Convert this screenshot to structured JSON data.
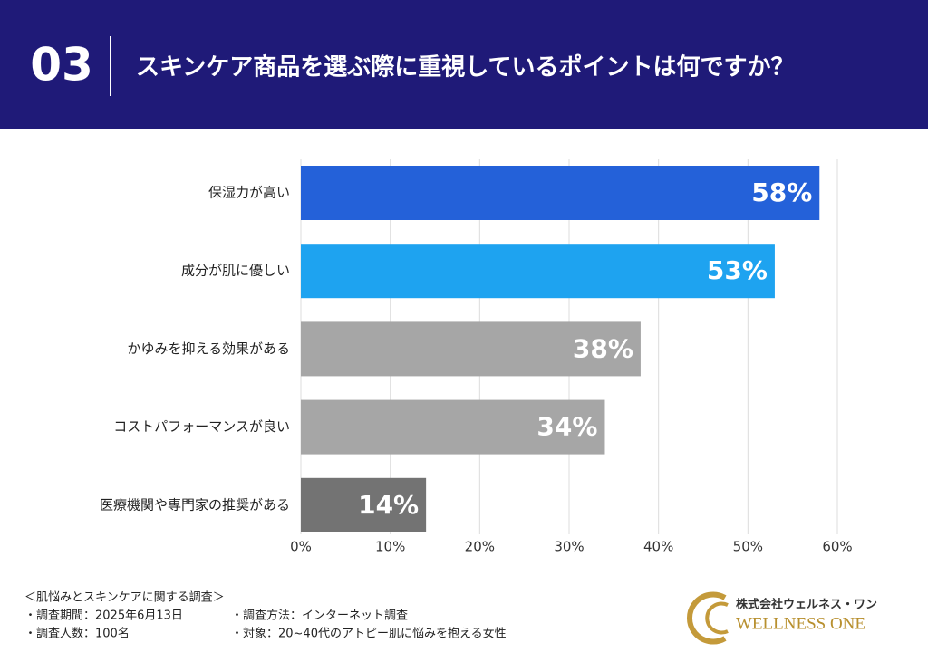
{
  "header": {
    "number": "03"
  },
  "chart_data": {
    "type": "barh",
    "title": "スキンケア商品を選ぶ際に重視しているポイントは何ですか？",
    "categories": [
      "保湿力が高い",
      "成分が肌に優しい",
      "かゆみを抑える効果がある",
      "コストパフォーマンスが良い",
      "医療機関や専門家の推奨がある"
    ],
    "values": [
      58,
      53,
      38,
      34,
      14
    ],
    "value_labels": [
      "58%",
      "53%",
      "38%",
      "34%",
      "14%"
    ],
    "colors": [
      "#2461d9",
      "#1ea3f0",
      "#a6a6a6",
      "#a6a6a6",
      "#737373"
    ],
    "xlim": [
      0,
      60
    ],
    "xticks": [
      {
        "value": 0,
        "label": "0%"
      },
      {
        "value": 10,
        "label": "10%"
      },
      {
        "value": 20,
        "label": "20%"
      },
      {
        "value": 30,
        "label": "30%"
      },
      {
        "value": 40,
        "label": "40%"
      },
      {
        "value": 50,
        "label": "50%"
      },
      {
        "value": 60,
        "label": "60%"
      }
    ],
    "grid": true
  },
  "footer": {
    "lines": [
      "＜肌悩みとスキンケアに関する調査＞",
      "・調査期間：2025年6月13日",
      "・調査人数：100名",
      "・調査方法：インターネット調査",
      "・対象：20~40代のアトピー肌に悩みを抱える女性"
    ],
    "company": "株式会社ウェルネス・ワン",
    "brand": "WELLNESS ONE"
  }
}
